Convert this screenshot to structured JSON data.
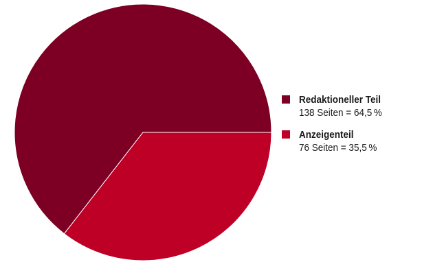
{
  "chart_data": {
    "type": "pie",
    "slices": [
      {
        "label": "Redaktioneller Teil",
        "detail": "138 Seiten = 64,5 %",
        "pages": 138,
        "percent": 64.5,
        "color": "#7d0024"
      },
      {
        "label": "Anzeigenteil",
        "detail": "76 Seiten = 35,5 %",
        "pages": 76,
        "percent": 35.5,
        "color": "#bf0026"
      }
    ],
    "legend_position": "right"
  }
}
